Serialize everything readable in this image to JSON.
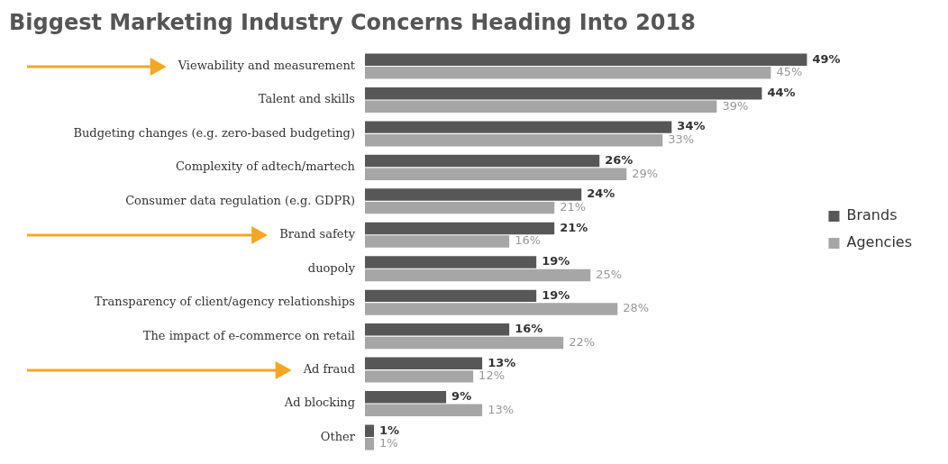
{
  "chart_data": {
    "type": "bar",
    "orientation": "horizontal",
    "title": "Biggest Marketing Industry Concerns Heading Into 2018",
    "categories": [
      "Viewability and measurement",
      "Talent and skills",
      "Budgeting changes (e.g. zero-based budgeting)",
      "Complexity of adtech/martech",
      "Consumer data regulation (e.g. GDPR)",
      "Brand safety",
      "duopoly",
      "Transparency of client/agency relationships",
      "The impact of e-commerce on retail",
      "Ad fraud",
      "Ad blocking",
      "Other"
    ],
    "series": [
      {
        "name": "Brands",
        "color": "#575757",
        "values": [
          49,
          44,
          34,
          26,
          24,
          21,
          19,
          19,
          16,
          13,
          9,
          1
        ],
        "value_labels": [
          "49%",
          "44%",
          "34%",
          "26%",
          "24%",
          "21%",
          "19%",
          "19%",
          "16%",
          "13%",
          "9%",
          "1%"
        ]
      },
      {
        "name": "Agencies",
        "color": "#a6a6a6",
        "values": [
          45,
          39,
          33,
          29,
          21,
          16,
          25,
          28,
          22,
          12,
          13,
          1
        ],
        "value_labels": [
          "45%",
          "39%",
          "33%",
          "29%",
          "21%",
          "16%",
          "25%",
          "28%",
          "22%",
          "12%",
          "13%",
          "1%"
        ]
      }
    ],
    "legend": "right",
    "grid": false
  }
}
